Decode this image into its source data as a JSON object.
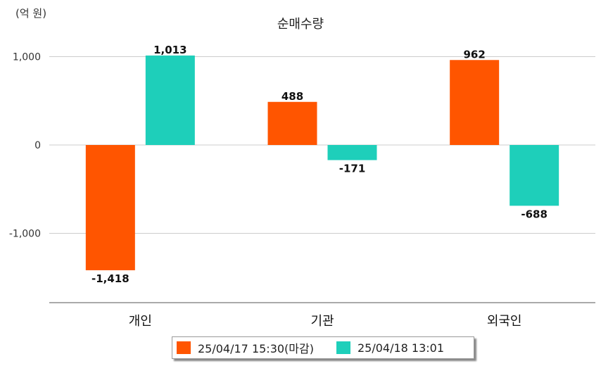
{
  "unit_label": "(억 원)",
  "colors": {
    "series1": "#ff5500",
    "series2": "#1ecfba",
    "grid": "#cccccc",
    "axis": "#777777"
  },
  "chart_data": {
    "type": "bar",
    "title": "순매수량",
    "xlabel": "",
    "ylabel": "",
    "ylim": [
      -1800,
      1000
    ],
    "yticks": [
      1000,
      0,
      -1000
    ],
    "ytick_labels": [
      "1,000",
      "0",
      "-1,000"
    ],
    "categories": [
      "개인",
      "기관",
      "외국인"
    ],
    "series": [
      {
        "name": "25/04/17 15:30(마감)",
        "values": [
          -1418,
          488,
          962
        ],
        "labels": [
          "-1,418",
          "488",
          "962"
        ],
        "color": "#ff5500"
      },
      {
        "name": "25/04/18 13:01",
        "values": [
          1013,
          -171,
          -688
        ],
        "labels": [
          "1,013",
          "-171",
          "-688"
        ],
        "color": "#1ecfba"
      }
    ],
    "grid": true,
    "legend_position": "bottom"
  }
}
